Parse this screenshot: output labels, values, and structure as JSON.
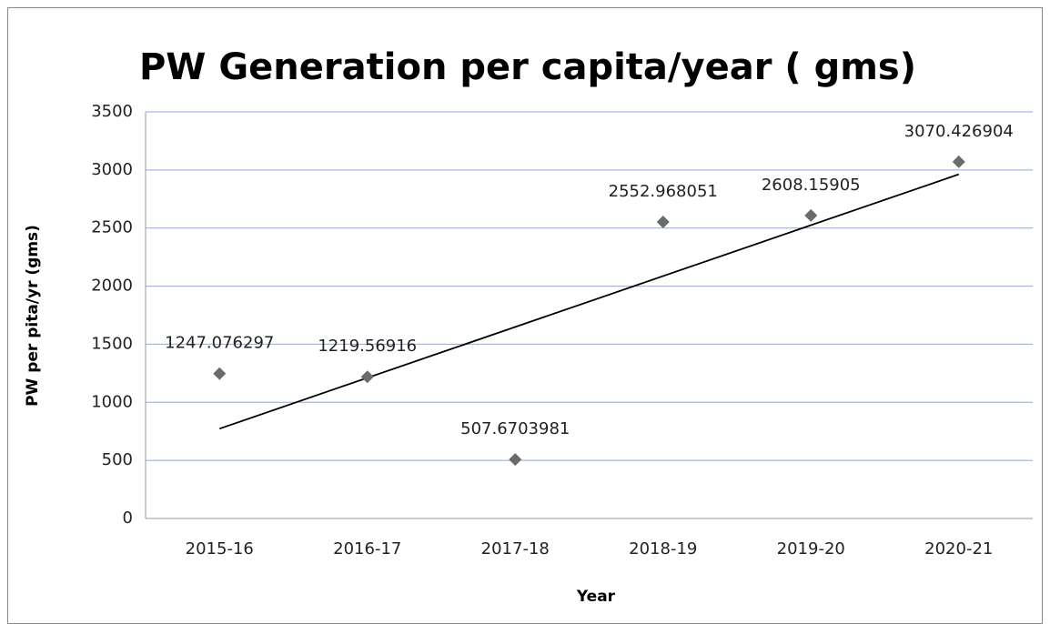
{
  "chart_data": {
    "type": "scatter",
    "title": "PW Generation per capita/year ( gms)",
    "x_label": "Year",
    "y_label": "PW per pita/yr (gms)",
    "categories": [
      "2015-16",
      "2016-17",
      "2017-18",
      "2018-19",
      "2019-20",
      "2020-21"
    ],
    "values": [
      1247.076297,
      1219.56916,
      507.6703981,
      2552.968051,
      2608.15905,
      3070.426904
    ],
    "color": "#6b6b6b",
    "trendline": "linear",
    "trendline_color": "#000000",
    "data_labels": true,
    "ylim": [
      0,
      3500
    ],
    "yticks": [
      0,
      500,
      1000,
      1500,
      2000,
      2500,
      3000,
      3500
    ],
    "grid": true,
    "grid_color": "#8faadc"
  }
}
